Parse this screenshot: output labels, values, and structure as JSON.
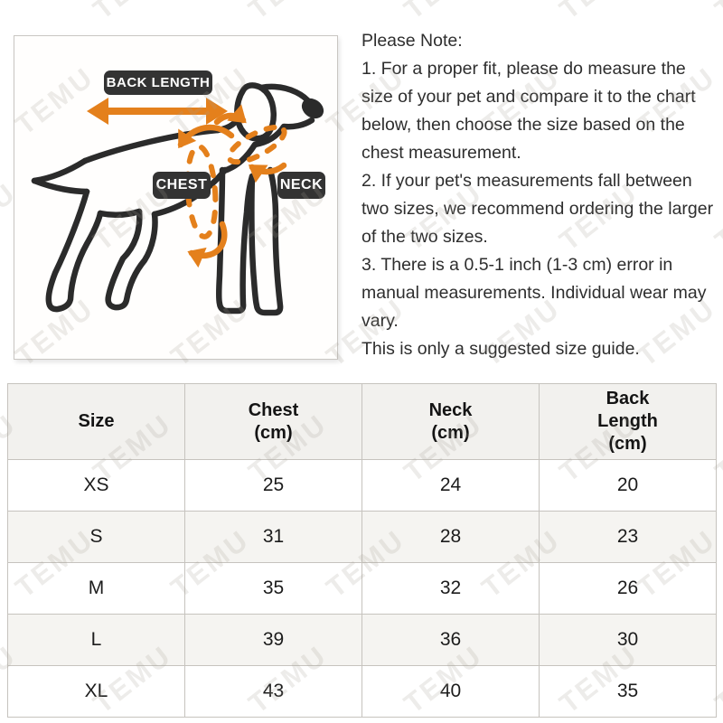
{
  "watermark": {
    "text": "TEMU"
  },
  "diagram": {
    "back_length_label": "BACK LENGTH",
    "chest_label": "CHEST",
    "neck_label": "NECK",
    "colors": {
      "annotation_orange": "#E4801C",
      "badge_bg": "#333333",
      "line_dark": "#2B2B2B"
    }
  },
  "note": {
    "title": "Please Note:",
    "items": [
      "1. For a proper fit, please do measure the size of your pet and compare it to the chart below, then choose the size based on the chest measurement.",
      "2. If your pet's measurements fall between two sizes, we recommend ordering the larger of the two sizes.",
      "3. There is a 0.5-1 inch (1-3 cm) error in manual measurements. Individual wear may vary.",
      "This is only a suggested size guide."
    ]
  },
  "size_table": {
    "columns": [
      {
        "label": "Size",
        "unit": ""
      },
      {
        "label": "Chest",
        "unit": "(cm)"
      },
      {
        "label": "Neck",
        "unit": "(cm)"
      },
      {
        "label": "Back Length",
        "unit": "(cm)"
      }
    ],
    "rows": [
      {
        "size": "XS",
        "chest": "25",
        "neck": "24",
        "back_length": "20"
      },
      {
        "size": "S",
        "chest": "31",
        "neck": "28",
        "back_length": "23"
      },
      {
        "size": "M",
        "chest": "35",
        "neck": "32",
        "back_length": "26"
      },
      {
        "size": "L",
        "chest": "39",
        "neck": "36",
        "back_length": "30"
      },
      {
        "size": "XL",
        "chest": "43",
        "neck": "40",
        "back_length": "35"
      }
    ]
  },
  "chart_data": {
    "type": "table",
    "title": "Pet clothing size guide",
    "categories": [
      "XS",
      "S",
      "M",
      "L",
      "XL"
    ],
    "series": [
      {
        "name": "Chest (cm)",
        "values": [
          25,
          31,
          35,
          39,
          43
        ]
      },
      {
        "name": "Neck (cm)",
        "values": [
          24,
          28,
          32,
          36,
          40
        ]
      },
      {
        "name": "Back Length (cm)",
        "values": [
          20,
          23,
          26,
          30,
          35
        ]
      }
    ]
  }
}
